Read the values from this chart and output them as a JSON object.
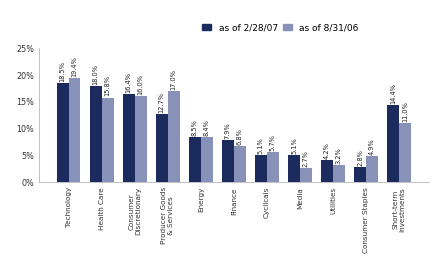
{
  "categories": [
    "Technology",
    "Health Care",
    "Consumer\nDiscretionary",
    "Producer Goods\n& Services",
    "Energy",
    "Finance",
    "Cyclicals",
    "Media",
    "Utilities",
    "Consumer Staples",
    "Short-term\nInvestments"
  ],
  "series1_label": "as of 2/28/07",
  "series2_label": "as of 8/31/06",
  "series1_values": [
    18.5,
    18.0,
    16.4,
    12.7,
    8.5,
    7.9,
    5.1,
    5.1,
    4.2,
    2.8,
    14.4
  ],
  "series2_values": [
    19.4,
    15.8,
    16.0,
    17.0,
    8.4,
    6.8,
    5.7,
    2.7,
    3.2,
    4.9,
    11.0
  ],
  "color1": "#1c2b5e",
  "color2": "#8892b8",
  "ylim": [
    0,
    25
  ],
  "yticks": [
    0,
    5,
    10,
    15,
    20,
    25
  ],
  "ytick_labels": [
    "0%",
    "5%",
    "10%",
    "15%",
    "20%",
    "25%"
  ],
  "bar_width": 0.36,
  "label_fontsize": 5.2,
  "tick_fontsize": 5.8,
  "legend_fontsize": 6.5,
  "value_fontsize": 4.8
}
